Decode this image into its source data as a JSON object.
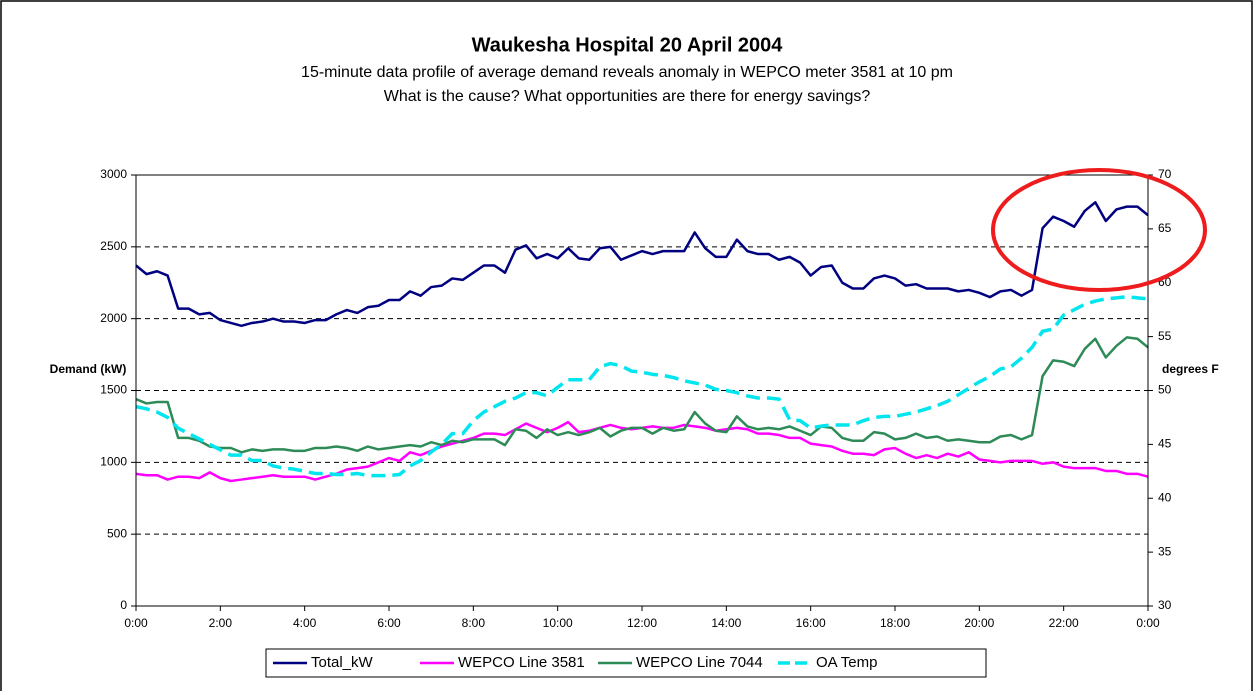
{
  "chart_data": {
    "type": "line",
    "title": "Waukesha Hospital 20 April 2004",
    "subtitle": [
      "15-minute data profile of average demand reveals anomaly in WEPCO meter 3581 at 10 pm",
      "What is the cause?  What opportunities are there for energy savings?"
    ],
    "ylabel": "Demand (kW)",
    "y2label": "degrees F",
    "x": [
      0,
      0.25,
      0.5,
      0.75,
      1,
      1.25,
      1.5,
      1.75,
      2,
      2.25,
      2.5,
      2.75,
      3,
      3.25,
      3.5,
      3.75,
      4,
      4.25,
      4.5,
      4.75,
      5,
      5.25,
      5.5,
      5.75,
      6,
      6.25,
      6.5,
      6.75,
      7,
      7.25,
      7.5,
      7.75,
      8,
      8.25,
      8.5,
      8.75,
      9,
      9.25,
      9.5,
      9.75,
      10,
      10.25,
      10.5,
      10.75,
      11,
      11.25,
      11.5,
      11.75,
      12,
      12.25,
      12.5,
      12.75,
      13,
      13.25,
      13.5,
      13.75,
      14,
      14.25,
      14.5,
      14.75,
      15,
      15.25,
      15.5,
      15.75,
      16,
      16.25,
      16.5,
      16.75,
      17,
      17.25,
      17.5,
      17.75,
      18,
      18.25,
      18.5,
      18.75,
      19,
      19.25,
      19.5,
      19.75,
      20,
      20.25,
      20.5,
      20.75,
      21,
      21.25,
      21.5,
      21.75,
      22,
      22.25,
      22.5,
      22.75,
      23,
      23.25,
      23.5,
      23.75,
      24
    ],
    "xlim": [
      0,
      24
    ],
    "xticks": [
      {
        "value": 0,
        "label": "0:00"
      },
      {
        "value": 2,
        "label": "2:00"
      },
      {
        "value": 4,
        "label": "4:00"
      },
      {
        "value": 6,
        "label": "6:00"
      },
      {
        "value": 8,
        "label": "8:00"
      },
      {
        "value": 10,
        "label": "10:00"
      },
      {
        "value": 12,
        "label": "12:00"
      },
      {
        "value": 14,
        "label": "14:00"
      },
      {
        "value": 16,
        "label": "16:00"
      },
      {
        "value": 18,
        "label": "18:00"
      },
      {
        "value": 20,
        "label": "20:00"
      },
      {
        "value": 22,
        "label": "22:00"
      },
      {
        "value": 24,
        "label": "0:00"
      }
    ],
    "ylim": [
      0,
      3000
    ],
    "yticks": [
      0,
      500,
      1000,
      1500,
      2000,
      2500,
      3000
    ],
    "y2lim": [
      30,
      70
    ],
    "y2ticks": [
      30,
      35,
      40,
      45,
      50,
      55,
      60,
      65,
      70
    ],
    "grid": true,
    "legend": "bottom",
    "series": [
      {
        "name": "Total_kW",
        "color": "#000080",
        "values": [
          2370,
          2310,
          2330,
          2300,
          2070,
          2070,
          2030,
          2040,
          1990,
          1970,
          1950,
          1970,
          1980,
          2000,
          1980,
          1980,
          1970,
          1990,
          1990,
          2030,
          2060,
          2040,
          2080,
          2090,
          2130,
          2130,
          2190,
          2160,
          2220,
          2230,
          2280,
          2270,
          2320,
          2370,
          2370,
          2320,
          2480,
          2510,
          2420,
          2450,
          2420,
          2490,
          2420,
          2410,
          2490,
          2500,
          2410,
          2440,
          2470,
          2450,
          2470,
          2470,
          2470,
          2600,
          2490,
          2430,
          2430,
          2550,
          2470,
          2450,
          2450,
          2410,
          2430,
          2390,
          2300,
          2360,
          2370,
          2250,
          2210,
          2210,
          2280,
          2300,
          2280,
          2230,
          2240,
          2210,
          2210,
          2210,
          2190,
          2200,
          2180,
          2150,
          2190,
          2200,
          2160,
          2200,
          2630,
          2710,
          2680,
          2640,
          2750,
          2810,
          2680,
          2760,
          2780,
          2780,
          2720
        ]
      },
      {
        "name": "WEPCO Line 3581",
        "color": "#ff00ff",
        "values": [
          920,
          910,
          910,
          880,
          900,
          900,
          890,
          930,
          890,
          870,
          880,
          890,
          900,
          910,
          900,
          900,
          900,
          880,
          900,
          920,
          950,
          960,
          970,
          1000,
          1030,
          1010,
          1070,
          1050,
          1080,
          1110,
          1130,
          1150,
          1170,
          1200,
          1200,
          1190,
          1230,
          1270,
          1240,
          1210,
          1240,
          1280,
          1210,
          1220,
          1240,
          1260,
          1240,
          1230,
          1240,
          1250,
          1240,
          1240,
          1260,
          1250,
          1240,
          1220,
          1230,
          1240,
          1230,
          1200,
          1200,
          1190,
          1170,
          1170,
          1130,
          1120,
          1110,
          1080,
          1060,
          1060,
          1050,
          1090,
          1100,
          1060,
          1030,
          1050,
          1030,
          1060,
          1040,
          1070,
          1020,
          1010,
          1000,
          1010,
          1010,
          1010,
          990,
          1000,
          970,
          960,
          960,
          960,
          940,
          940,
          920,
          920,
          900
        ]
      },
      {
        "name": "WEPCO Line 7044",
        "color": "#2e8b57",
        "values": [
          1440,
          1410,
          1420,
          1420,
          1170,
          1170,
          1150,
          1110,
          1100,
          1100,
          1070,
          1090,
          1080,
          1090,
          1090,
          1080,
          1080,
          1100,
          1100,
          1110,
          1100,
          1080,
          1110,
          1090,
          1100,
          1110,
          1120,
          1110,
          1140,
          1120,
          1150,
          1140,
          1160,
          1160,
          1160,
          1120,
          1230,
          1220,
          1170,
          1230,
          1190,
          1210,
          1190,
          1210,
          1240,
          1180,
          1220,
          1240,
          1240,
          1200,
          1240,
          1220,
          1230,
          1350,
          1270,
          1220,
          1210,
          1320,
          1250,
          1230,
          1240,
          1230,
          1250,
          1220,
          1190,
          1250,
          1240,
          1170,
          1150,
          1150,
          1210,
          1200,
          1160,
          1170,
          1200,
          1170,
          1180,
          1150,
          1160,
          1150,
          1140,
          1140,
          1180,
          1190,
          1160,
          1190,
          1600,
          1710,
          1700,
          1670,
          1790,
          1860,
          1730,
          1810,
          1870,
          1860,
          1800
        ]
      },
      {
        "name": "OA Temp",
        "color": "#00e5ee",
        "axis": "y2",
        "dashed": true,
        "values": [
          48.5,
          48.3,
          48,
          47.5,
          46.5,
          46,
          45.5,
          45,
          44.5,
          44,
          44,
          43.5,
          43.5,
          43,
          42.8,
          42.7,
          42.5,
          42.3,
          42.3,
          42.2,
          42.2,
          42.3,
          42.1,
          42.1,
          42.1,
          42.2,
          43,
          43.5,
          44.3,
          45,
          46,
          46,
          47.2,
          48,
          48.5,
          49,
          49.3,
          49.8,
          49.8,
          49.5,
          50.3,
          51,
          51,
          51,
          52.2,
          52.5,
          52.3,
          51.8,
          51.7,
          51.5,
          51.4,
          51.2,
          50.9,
          50.7,
          50.5,
          50.1,
          50,
          49.8,
          49.5,
          49.3,
          49.3,
          49.2,
          47.3,
          47.2,
          46.5,
          46.7,
          46.8,
          46.8,
          46.8,
          47.2,
          47.5,
          47.6,
          47.6,
          47.8,
          48,
          48.3,
          48.6,
          49,
          49.6,
          50.2,
          50.8,
          51.3,
          52,
          52.2,
          53,
          54,
          55.5,
          55.7,
          57,
          57.5,
          58,
          58.3,
          58.5,
          58.6,
          58.7,
          58.6,
          58.5
        ]
      }
    ]
  }
}
